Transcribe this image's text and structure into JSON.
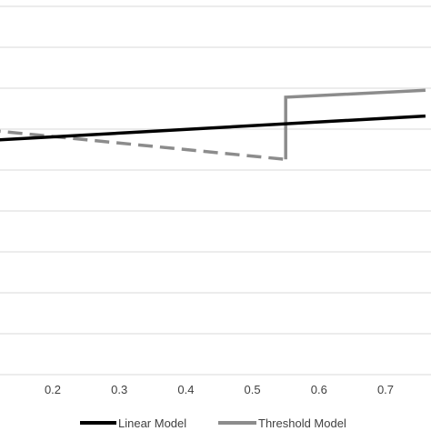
{
  "chart_data": {
    "type": "line",
    "xlabel": "",
    "ylabel": "",
    "x_ticks": [
      0.2,
      0.3,
      0.4,
      0.5,
      0.6,
      0.7
    ],
    "x_tick_labels": [
      "0.2",
      "0.3",
      "0.4",
      "0.5",
      "0.6",
      "0.7"
    ],
    "xlim": [
      0.1,
      0.76
    ],
    "grid": "horizontal",
    "legend_position": "bottom",
    "series": [
      {
        "name": "Linear  Model",
        "color": "#000000",
        "style": "solid",
        "points": [
          [
            0.1,
            0.72
          ],
          [
            0.76,
            1.32
          ]
        ]
      },
      {
        "name": "Threshold Model",
        "color": "#8c8c8c",
        "style": "dashed-then-solid",
        "dashed_segment": [
          [
            0.1,
            0.98
          ],
          [
            0.55,
            0.26
          ]
        ],
        "solid_segment": [
          [
            0.55,
            0.26
          ],
          [
            0.55,
            1.78
          ],
          [
            0.76,
            1.95
          ]
        ]
      }
    ]
  }
}
